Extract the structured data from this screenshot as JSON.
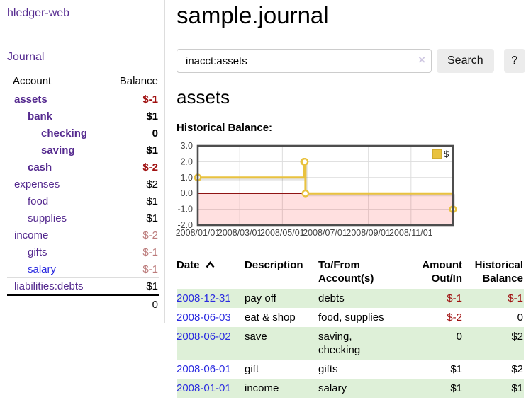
{
  "colors": {
    "link_purple": "#552a8f",
    "link_blue": "#2a2ae0",
    "negative_strong": "#a01111",
    "negative_faded": "#bb7a7a",
    "row_stripe_green": "#def0d8",
    "chart_line": "#e9c23f",
    "chart_border": "#4d4d4d",
    "chart_grid": "#dcdcdc",
    "chart_zero_line": "#8f1414",
    "chart_negative_region": "rgba(255,0,0,0.12)"
  },
  "sidebar": {
    "brand": "hledger-web",
    "nav": [
      {
        "label": "Journal"
      }
    ],
    "table": {
      "account_header": "Account",
      "balance_header": "Balance",
      "rows": [
        {
          "name": "assets",
          "indent": 0,
          "bold": true,
          "balance": "$-1",
          "balance_tone": "negative-strong"
        },
        {
          "name": "bank",
          "indent": 1,
          "bold": true,
          "balance": "$1",
          "balance_tone": "normal"
        },
        {
          "name": "checking",
          "indent": 2,
          "bold": true,
          "balance": "0",
          "balance_tone": "normal"
        },
        {
          "name": "saving",
          "indent": 2,
          "bold": true,
          "balance": "$1",
          "balance_tone": "normal"
        },
        {
          "name": "cash",
          "indent": 1,
          "bold": true,
          "balance": "$-2",
          "balance_tone": "negative-strong"
        },
        {
          "name": "expenses",
          "indent": 0,
          "bold": false,
          "balance": "$2",
          "balance_tone": "normal"
        },
        {
          "name": "food",
          "indent": 1,
          "bold": false,
          "balance": "$1",
          "balance_tone": "normal"
        },
        {
          "name": "supplies",
          "indent": 1,
          "bold": false,
          "balance": "$1",
          "balance_tone": "normal"
        },
        {
          "name": "income",
          "indent": 0,
          "bold": false,
          "balance": "$-2",
          "balance_tone": "negative-faded"
        },
        {
          "name": "gifts",
          "indent": 1,
          "bold": false,
          "balance": "$-1",
          "balance_tone": "negative-faded"
        },
        {
          "name": "salary",
          "indent": 1,
          "bold": false,
          "balance": "$-1",
          "balance_tone": "negative-faded",
          "link_state": "unvisited"
        },
        {
          "name": "liabilities:debts",
          "indent": 0,
          "bold": false,
          "balance": "$1",
          "balance_tone": "normal"
        }
      ],
      "total": "0"
    }
  },
  "main": {
    "title": "sample.journal",
    "search": {
      "value": "inacct:assets",
      "clear_icon": "×",
      "search_button": "Search",
      "help_button": "?"
    },
    "account_heading": "assets",
    "chart_title": "Historical Balance:"
  },
  "chart_data": {
    "type": "line",
    "line_style": "step-after",
    "title": "Historical Balance:",
    "legend": [
      {
        "label": "$",
        "color": "#e9c23f"
      }
    ],
    "legend_position": "top-right",
    "grid": true,
    "negative_region_shaded": true,
    "zero_line": true,
    "ylim": [
      -2,
      3
    ],
    "y_ticks": [
      3,
      2,
      1,
      0,
      -1,
      -2
    ],
    "x_range_days": [
      0,
      365
    ],
    "x_ticks": [
      {
        "label": "2008/01/01",
        "day": 0
      },
      {
        "label": "2008/03/01",
        "day": 60
      },
      {
        "label": "2008/05/01",
        "day": 121
      },
      {
        "label": "2008/07/01",
        "day": 182
      },
      {
        "label": "2008/09/01",
        "day": 244
      },
      {
        "label": "2008/11/01",
        "day": 305
      }
    ],
    "series": [
      {
        "name": "$",
        "color": "#e9c23f",
        "points": [
          {
            "date": "2008-01-01",
            "day": 0,
            "value": 1
          },
          {
            "date": "2008-06-01",
            "day": 152,
            "value": 2
          },
          {
            "date": "2008-06-02",
            "day": 153,
            "value": 2
          },
          {
            "date": "2008-06-03",
            "day": 154,
            "value": 0
          },
          {
            "date": "2008-12-31",
            "day": 365,
            "value": -1
          }
        ]
      }
    ]
  },
  "register": {
    "headers": {
      "date": "Date",
      "description": "Description",
      "tofrom": "To/From Account(s)",
      "amount": "Amount Out/In",
      "balance": "Historical Balance"
    },
    "sort": {
      "column": "Date",
      "direction": "ascending"
    },
    "rows": [
      {
        "date": "2008-12-31",
        "description": "pay off",
        "accounts": [
          "debts"
        ],
        "amount": "$-1",
        "amount_tone": "negative",
        "balance": "$-1",
        "balance_tone": "negative",
        "striped": true
      },
      {
        "date": "2008-06-03",
        "description": "eat & shop",
        "accounts": [
          "food, supplies"
        ],
        "amount": "$-2",
        "amount_tone": "negative",
        "balance": "0",
        "balance_tone": "normal",
        "striped": false
      },
      {
        "date": "2008-06-02",
        "description": "save",
        "accounts": [
          "saving,",
          "checking"
        ],
        "amount": "0",
        "amount_tone": "normal",
        "balance": "$2",
        "balance_tone": "normal",
        "striped": true
      },
      {
        "date": "2008-06-01",
        "description": "gift",
        "accounts": [
          "gifts"
        ],
        "amount": "$1",
        "amount_tone": "normal",
        "balance": "$2",
        "balance_tone": "normal",
        "striped": false
      },
      {
        "date": "2008-01-01",
        "description": "income",
        "accounts": [
          "salary"
        ],
        "amount": "$1",
        "amount_tone": "normal",
        "balance": "$1",
        "balance_tone": "normal",
        "striped": true
      }
    ]
  }
}
